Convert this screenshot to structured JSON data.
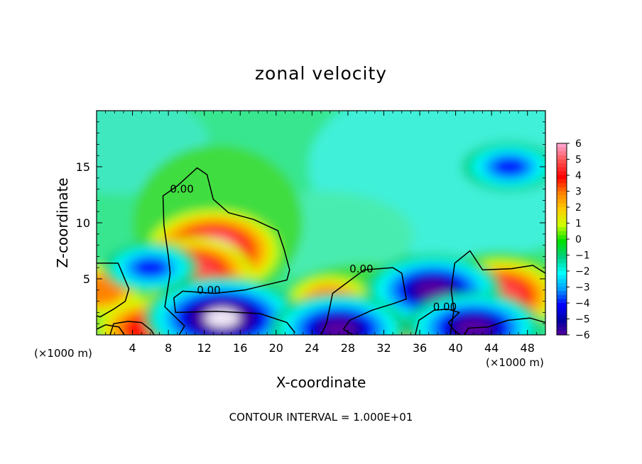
{
  "chart_data": {
    "type": "heatmap",
    "title": "zonal velocity",
    "xlabel": "X-coordinate",
    "ylabel": "Z-coordinate",
    "x_unit_left": "(×1000 m)",
    "x_unit_right": "(×1000 m)",
    "footer": "CONTOUR INTERVAL = 1.000E+01",
    "xlim": [
      0,
      50
    ],
    "ylim": [
      0,
      20
    ],
    "x_ticks": [
      "4",
      "8",
      "12",
      "16",
      "20",
      "24",
      "28",
      "32",
      "36",
      "40",
      "44",
      "48"
    ],
    "y_ticks": [
      "5",
      "10",
      "15"
    ],
    "colorbar_labels": [
      "6",
      "5",
      "4",
      "3",
      "2",
      "1",
      "0",
      "−1",
      "−2",
      "−3",
      "−4",
      "−5",
      "−6"
    ],
    "colorbar_range": [
      -6,
      6
    ],
    "colorscale": [
      "#ffa0c8",
      "#ff5050",
      "#ff0000",
      "#ff8000",
      "#ffcc00",
      "#ccff00",
      "#00e000",
      "#00d080",
      "#00ffff",
      "#00a0ff",
      "#0000ff",
      "#0000a0",
      "#6000a0"
    ],
    "contour_level": "0.00",
    "contour_labels": [
      {
        "text": "0.00",
        "x": 9.5,
        "z": 13.0
      },
      {
        "text": "0.00",
        "x": 12.5,
        "z": 4.0
      },
      {
        "text": "0.00",
        "x": 29.5,
        "z": 5.9
      },
      {
        "text": "0.00",
        "x": 38.8,
        "z": 2.5
      }
    ],
    "features": [
      {
        "name": "positive core",
        "x": 13,
        "z": 7.5,
        "value": 6.5
      },
      {
        "name": "positive core",
        "x": 11,
        "z": 5.5,
        "value": 5
      },
      {
        "name": "positive core",
        "x": 26,
        "z": 3,
        "value": 3
      },
      {
        "name": "positive core",
        "x": 45,
        "z": 3.5,
        "value": 5
      },
      {
        "name": "positive core",
        "x": 0.5,
        "z": 4,
        "value": 3
      },
      {
        "name": "positive core",
        "x": 36.5,
        "z": 1,
        "value": 4
      },
      {
        "name": "positive core",
        "x": 5.5,
        "z": 0.5,
        "value": 4
      },
      {
        "name": "negative core",
        "x": 14,
        "z": 1.5,
        "value": -6.5
      },
      {
        "name": "negative core",
        "x": 37.5,
        "z": 4,
        "value": -5
      },
      {
        "name": "negative core",
        "x": 42,
        "z": 0.6,
        "value": -5
      },
      {
        "name": "negative core",
        "x": 27,
        "z": 0.5,
        "value": -5
      },
      {
        "name": "negative core",
        "x": 46,
        "z": 15,
        "value": -3.5
      },
      {
        "name": "negative core",
        "x": 6,
        "z": 6,
        "value": -3
      }
    ]
  }
}
